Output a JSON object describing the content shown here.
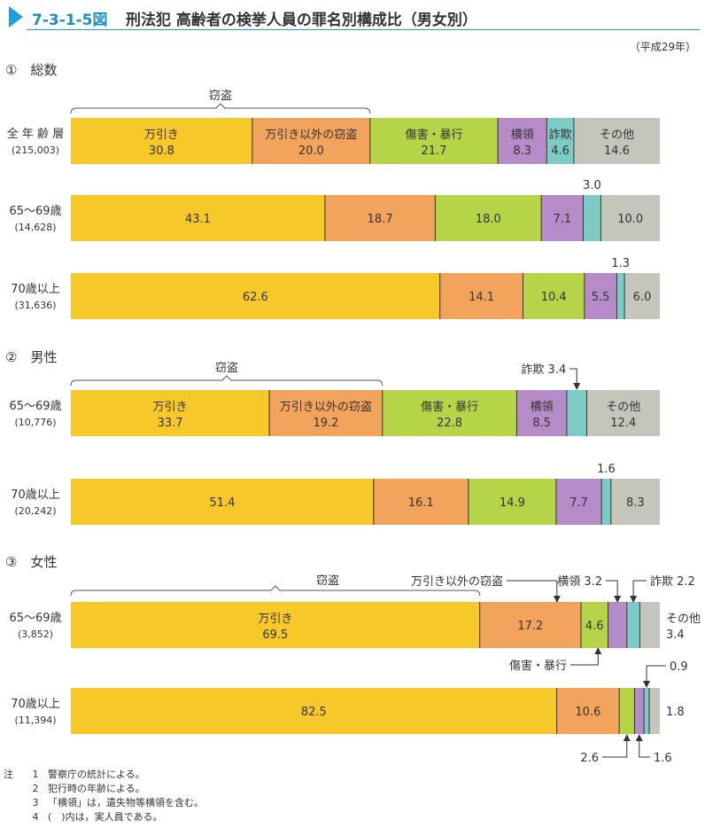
{
  "title": {
    "figure_no": "7-3-1-5図",
    "text": "刑法犯 高齢者の検挙人員の罪名別構成比（男女別）"
  },
  "year_note": "（平成29年）",
  "colors": {
    "shoplifting": "#f7c82a",
    "other_theft": "#f2a45c",
    "injury_assault": "#b6d447",
    "embezzlement": "#b58cc7",
    "fraud": "#7ccbc4",
    "other": "#c4c6bb"
  },
  "chart_data": {
    "type": "bar",
    "stacked": true,
    "orientation": "horizontal",
    "unit": "%",
    "categories_order": [
      "万引き",
      "万引き以外の窃盗",
      "傷害・暴行",
      "横領",
      "詐欺",
      "その他"
    ],
    "group_label_theft": "窃盗",
    "sections": [
      {
        "heading": "①　総数",
        "rows": [
          {
            "label": "全 年 齢 層",
            "count": "(215,003)",
            "values": [
              30.8,
              20.0,
              21.7,
              8.3,
              4.6,
              14.6
            ],
            "labels": [
              "30.8",
              "20.0",
              "21.7",
              "8.3",
              "4.6",
              "14.6"
            ],
            "cat_text": [
              "万引き",
              "万引き以外の窃盗",
              "傷害・暴行",
              "横領",
              "詐欺",
              "その他"
            ]
          },
          {
            "label": "65～69歳",
            "count": "(14,628)",
            "values": [
              43.1,
              18.7,
              18.0,
              7.1,
              3.0,
              10.0
            ],
            "labels": [
              "43.1",
              "18.7",
              "18.0",
              "7.1",
              "3.0",
              "10.0"
            ]
          },
          {
            "label": "70歳以上",
            "count": "(31,636)",
            "values": [
              62.6,
              14.1,
              10.4,
              5.5,
              1.3,
              6.0
            ],
            "labels": [
              "62.6",
              "14.1",
              "10.4",
              "5.5",
              "1.3",
              "6.0"
            ]
          }
        ]
      },
      {
        "heading": "②　男性",
        "rows": [
          {
            "label": "65～69歳",
            "count": "(10,776)",
            "values": [
              33.7,
              19.2,
              22.8,
              8.5,
              3.4,
              12.4
            ],
            "labels": [
              "33.7",
              "19.2",
              "22.8",
              "8.5",
              "詐欺 3.4",
              "12.4"
            ],
            "cat_text": [
              "万引き",
              "万引き以外の窃盗",
              "傷害・暴行",
              "横領",
              "",
              "その他"
            ]
          },
          {
            "label": "70歳以上",
            "count": "(20,242)",
            "values": [
              51.4,
              16.1,
              14.9,
              7.7,
              1.6,
              8.3
            ],
            "labels": [
              "51.4",
              "16.1",
              "14.9",
              "7.7",
              "1.6",
              "8.3"
            ]
          }
        ]
      },
      {
        "heading": "③　女性",
        "rows": [
          {
            "label": "65～69歳",
            "count": "(3,852)",
            "values": [
              69.5,
              17.2,
              4.6,
              3.2,
              2.2,
              3.4
            ],
            "labels": [
              "69.5",
              "17.2",
              "4.6",
              "横領 3.2",
              "詐欺 2.2",
              "3.4"
            ],
            "cat_text": [
              "万引き",
              "",
              "",
              "",
              "",
              "その他"
            ],
            "callouts": [
              "万引き以外の窃盗",
              "傷害・暴行"
            ]
          },
          {
            "label": "70歳以上",
            "count": "(11,394)",
            "values": [
              82.5,
              10.6,
              2.6,
              1.6,
              0.9,
              1.8
            ],
            "labels": [
              "82.5",
              "10.6",
              "2.6",
              "1.6",
              "0.9",
              "1.8"
            ]
          }
        ]
      }
    ]
  },
  "notes": [
    {
      "head": "注",
      "num": "1",
      "text": "警察庁の統計による。"
    },
    {
      "head": "",
      "num": "2",
      "text": "犯行時の年齢による。"
    },
    {
      "head": "",
      "num": "3",
      "text": "「横領」は，遺失物等横領を含む。"
    },
    {
      "head": "",
      "num": "4",
      "text": "(　)内は，実人員である。"
    }
  ]
}
